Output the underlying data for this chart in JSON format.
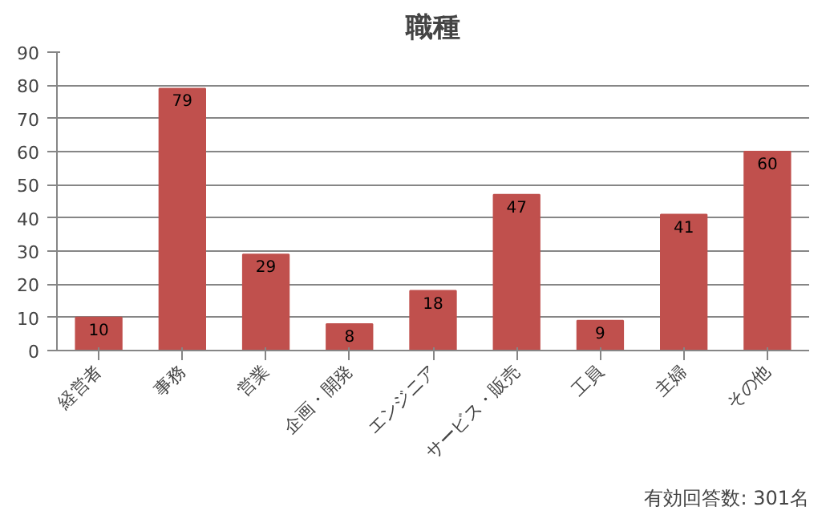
{
  "chart_data": {
    "type": "bar",
    "title": "職種",
    "categories": [
      "経営者",
      "事務",
      "営業",
      "企画・開発",
      "エンジニア",
      "サービス・販売",
      "工員",
      "主婦",
      "その他"
    ],
    "values": [
      10,
      79,
      29,
      8,
      18,
      47,
      9,
      41,
      60
    ],
    "color": "#c0504d",
    "data_labels": true,
    "ylim": [
      0,
      90
    ],
    "yticks": [
      0,
      10,
      20,
      30,
      40,
      50,
      60,
      70,
      80,
      90
    ],
    "grid": "y",
    "annotations": [
      "有効回答数: 301名"
    ]
  }
}
